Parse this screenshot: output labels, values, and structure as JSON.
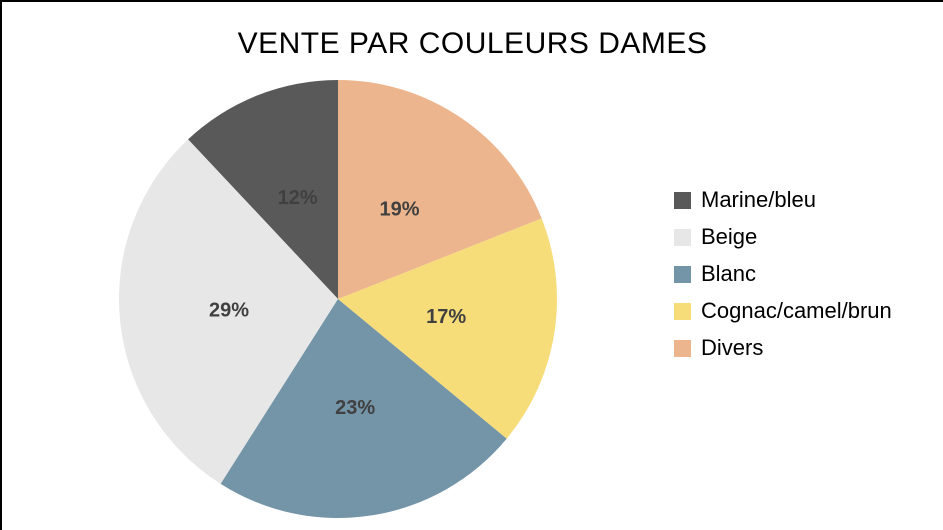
{
  "window": {
    "background": "#ffffff",
    "border_color": "#000000"
  },
  "chart_data": {
    "type": "pie",
    "title": "VENTE PAR COULEURS DAMES",
    "legend_position": "right",
    "direction": "counterclockwise",
    "start_angle_deg": 0,
    "label_format": "percent",
    "label_color": "#404040",
    "title_color": "#000000",
    "slices": [
      {
        "label": "Marine/bleu",
        "value": 12,
        "value_label": "12%",
        "color": "#595959"
      },
      {
        "label": "Beige",
        "value": 29,
        "value_label": "29%",
        "color": "#E7E7E7"
      },
      {
        "label": "Blanc",
        "value": 23,
        "value_label": "23%",
        "color": "#7495A8"
      },
      {
        "label": "Cognac/camel/brun",
        "value": 17,
        "value_label": "17%",
        "color": "#F7DD79"
      },
      {
        "label": "Divers",
        "value": 19,
        "value_label": "19%",
        "color": "#EDB58D"
      }
    ]
  }
}
